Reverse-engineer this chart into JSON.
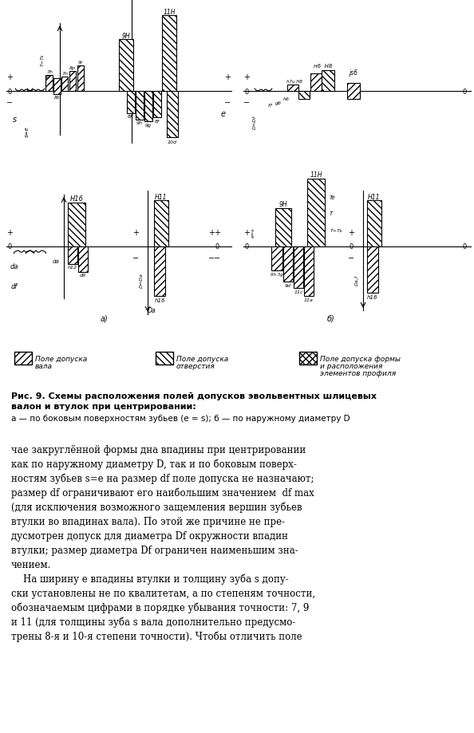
{
  "fig_caption_bold": "Рис. 9. Схемы расположения полей допусков эвольвентных шлицевых валон и втулок при центрировании:",
  "fig_caption_normal": "а — по боковым поверхностям зубьев (е = s); б — по наружному диаметру D",
  "legend_items": [
    {
      "hatch": "////",
      "label": "Поле допуска\nвала"
    },
    {
      "hatch": "\\\\\\\\",
      "label": "Поле допуска\nотверстия"
    },
    {
      "hatch": "xxxx",
      "label": "Поле допуска формы\nи расположения\nэлементов профиля"
    }
  ],
  "body_text": [
    "чае закруглённой формы дна впадины при центрировании",
    "как по наружному диаметру D, так и по боковым поверх-",
    "ностям зубьев s=e на размер df поле допуска не назначают;",
    "размер df ограничивают его наибольшим значением  df max",
    "(для исключения возможного защемления вершин зубьев",
    "втулки во впадинах вала). По этой же причине не пре-",
    "дусмотрен допуск для диаметра Df окружности впадин",
    "втулки; размер диаметра Df ограничен наименьшим зна-",
    "чением.",
    "    На ширину e впадины втулки и толщину зуба s допу-",
    "ски установлены не по квалитетам, а по степеням точности,",
    "обозначаемым цифрами в порядке убывания точности: 7, 9",
    "и 11 (для толщины зуба s вала дополнительно предусмо-",
    "трены 8-я и 10-я степени точности). Чтобы отличить поле"
  ],
  "bg_color": "#ffffff"
}
